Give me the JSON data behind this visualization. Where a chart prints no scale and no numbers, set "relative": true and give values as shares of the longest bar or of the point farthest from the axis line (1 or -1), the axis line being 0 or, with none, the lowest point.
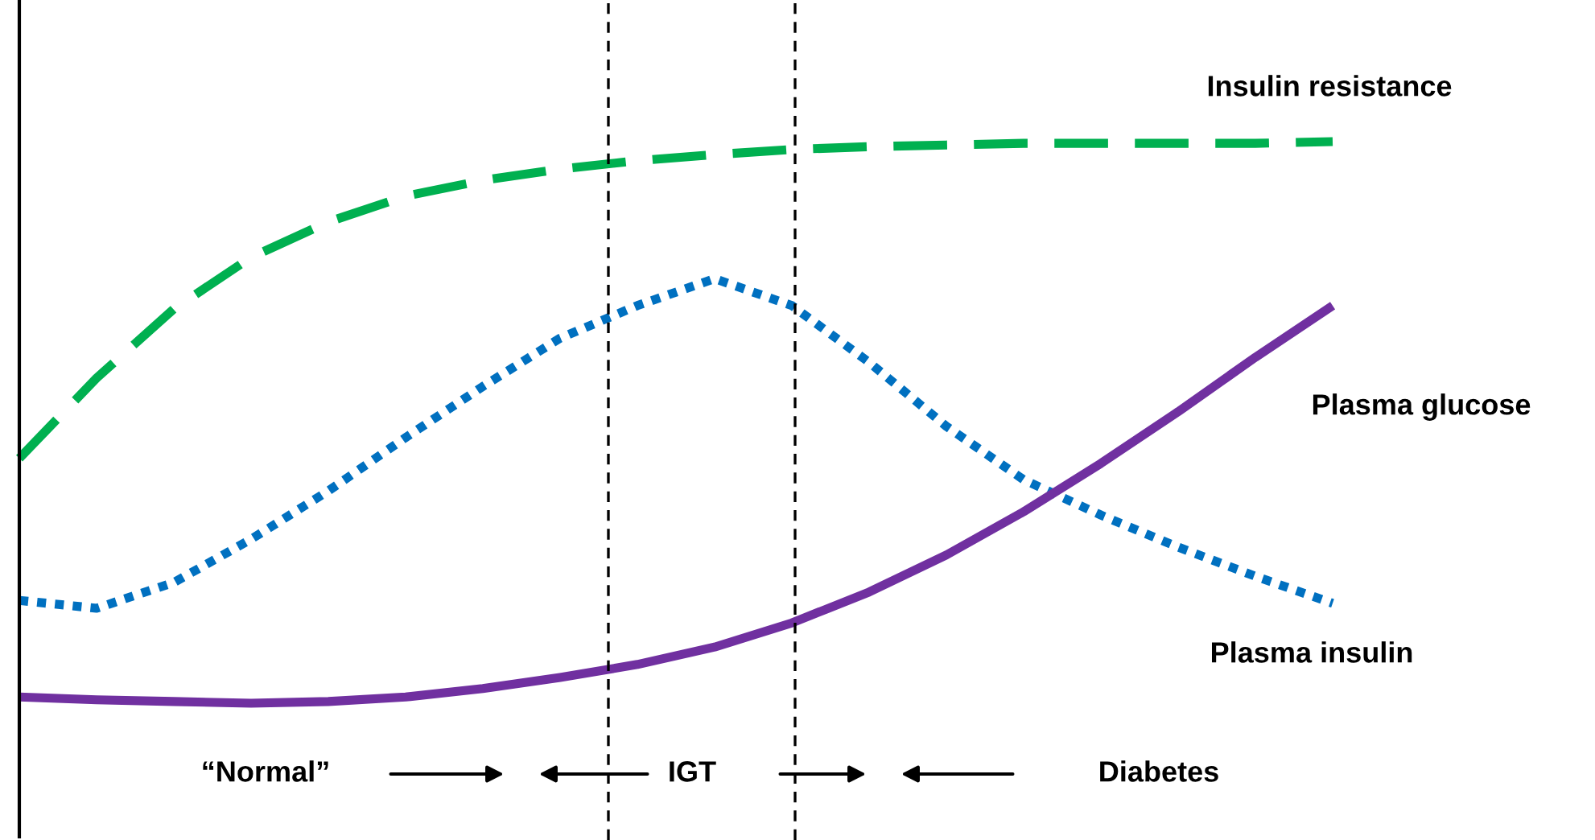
{
  "chart_data": {
    "type": "line",
    "relative": true,
    "categories": [
      null,
      null,
      null,
      null,
      null,
      null,
      null,
      null,
      null,
      null,
      null,
      null,
      null,
      null,
      null,
      null,
      null,
      null
    ],
    "series": [
      {
        "name": "Insulin resistance",
        "color": "#00b050",
        "line_style": "dashed",
        "values": [
          0.436,
          0.579,
          0.702,
          0.794,
          0.857,
          0.903,
          0.931,
          0.951,
          0.966,
          0.977,
          0.986,
          0.991,
          0.994,
          0.997,
          0.997,
          0.997,
          0.997,
          1.0
        ]
      },
      {
        "name": "Plasma insulin",
        "color": "#0070c0",
        "line_style": "dotted",
        "values": [
          0.183,
          0.169,
          0.215,
          0.292,
          0.378,
          0.473,
          0.564,
          0.65,
          0.708,
          0.756,
          0.708,
          0.607,
          0.493,
          0.398,
          0.335,
          0.278,
          0.226,
          0.178
        ]
      },
      {
        "name": "Plasma glucose",
        "color": "#7030a0",
        "line_style": "solid",
        "values": [
          0.011,
          0.006,
          0.003,
          0,
          0.003,
          0.011,
          0.026,
          0.046,
          0.069,
          0.1,
          0.143,
          0.198,
          0.264,
          0.341,
          0.427,
          0.519,
          0.616,
          0.708
        ]
      }
    ],
    "annotations": [
      "“Normal”",
      "IGT",
      "Diabetes"
    ],
    "legend": false,
    "marker": "none"
  }
}
